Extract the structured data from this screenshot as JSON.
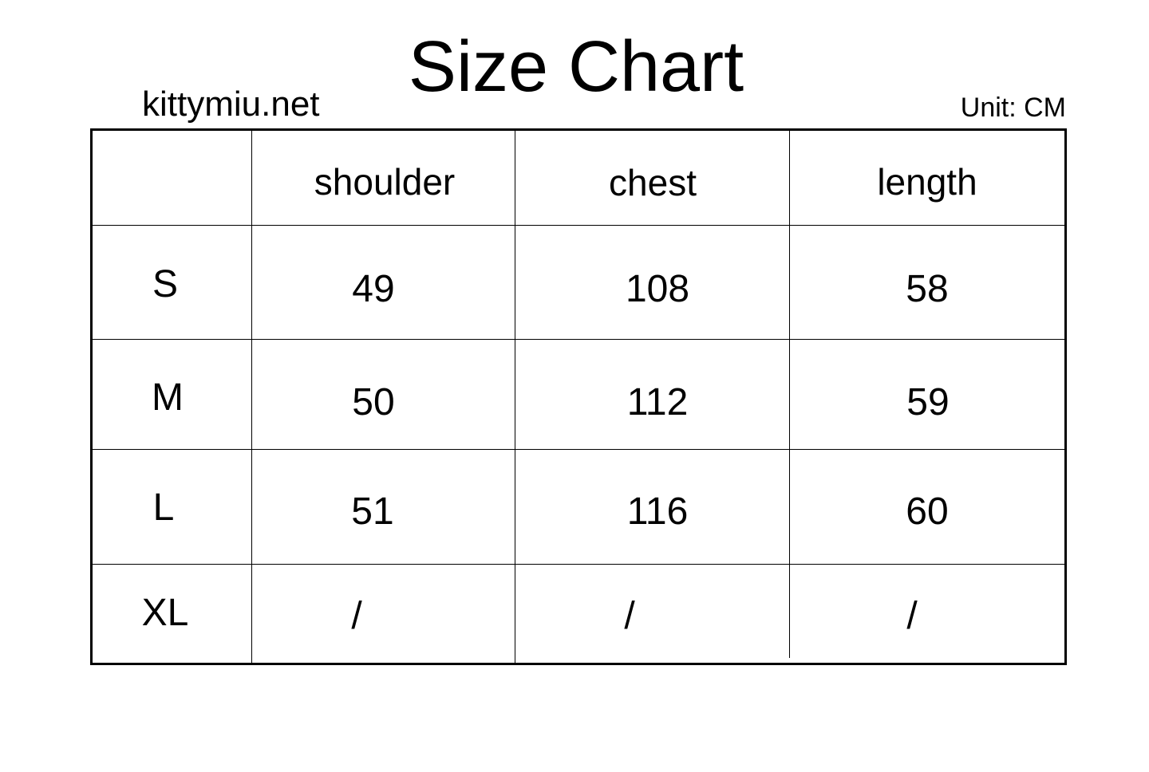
{
  "title": "Size Chart",
  "website": "kittymiu.net",
  "unit": "Unit: CM",
  "table": {
    "columns": [
      "",
      "shoulder",
      "chest",
      "length"
    ],
    "rows": [
      {
        "size": "S",
        "values": [
          "49",
          "108",
          "58"
        ]
      },
      {
        "size": "M",
        "values": [
          "50",
          "112",
          "59"
        ]
      },
      {
        "size": "L",
        "values": [
          "51",
          "116",
          "60"
        ]
      },
      {
        "size": "XL",
        "values": [
          "/",
          "/",
          "/"
        ]
      }
    ]
  }
}
